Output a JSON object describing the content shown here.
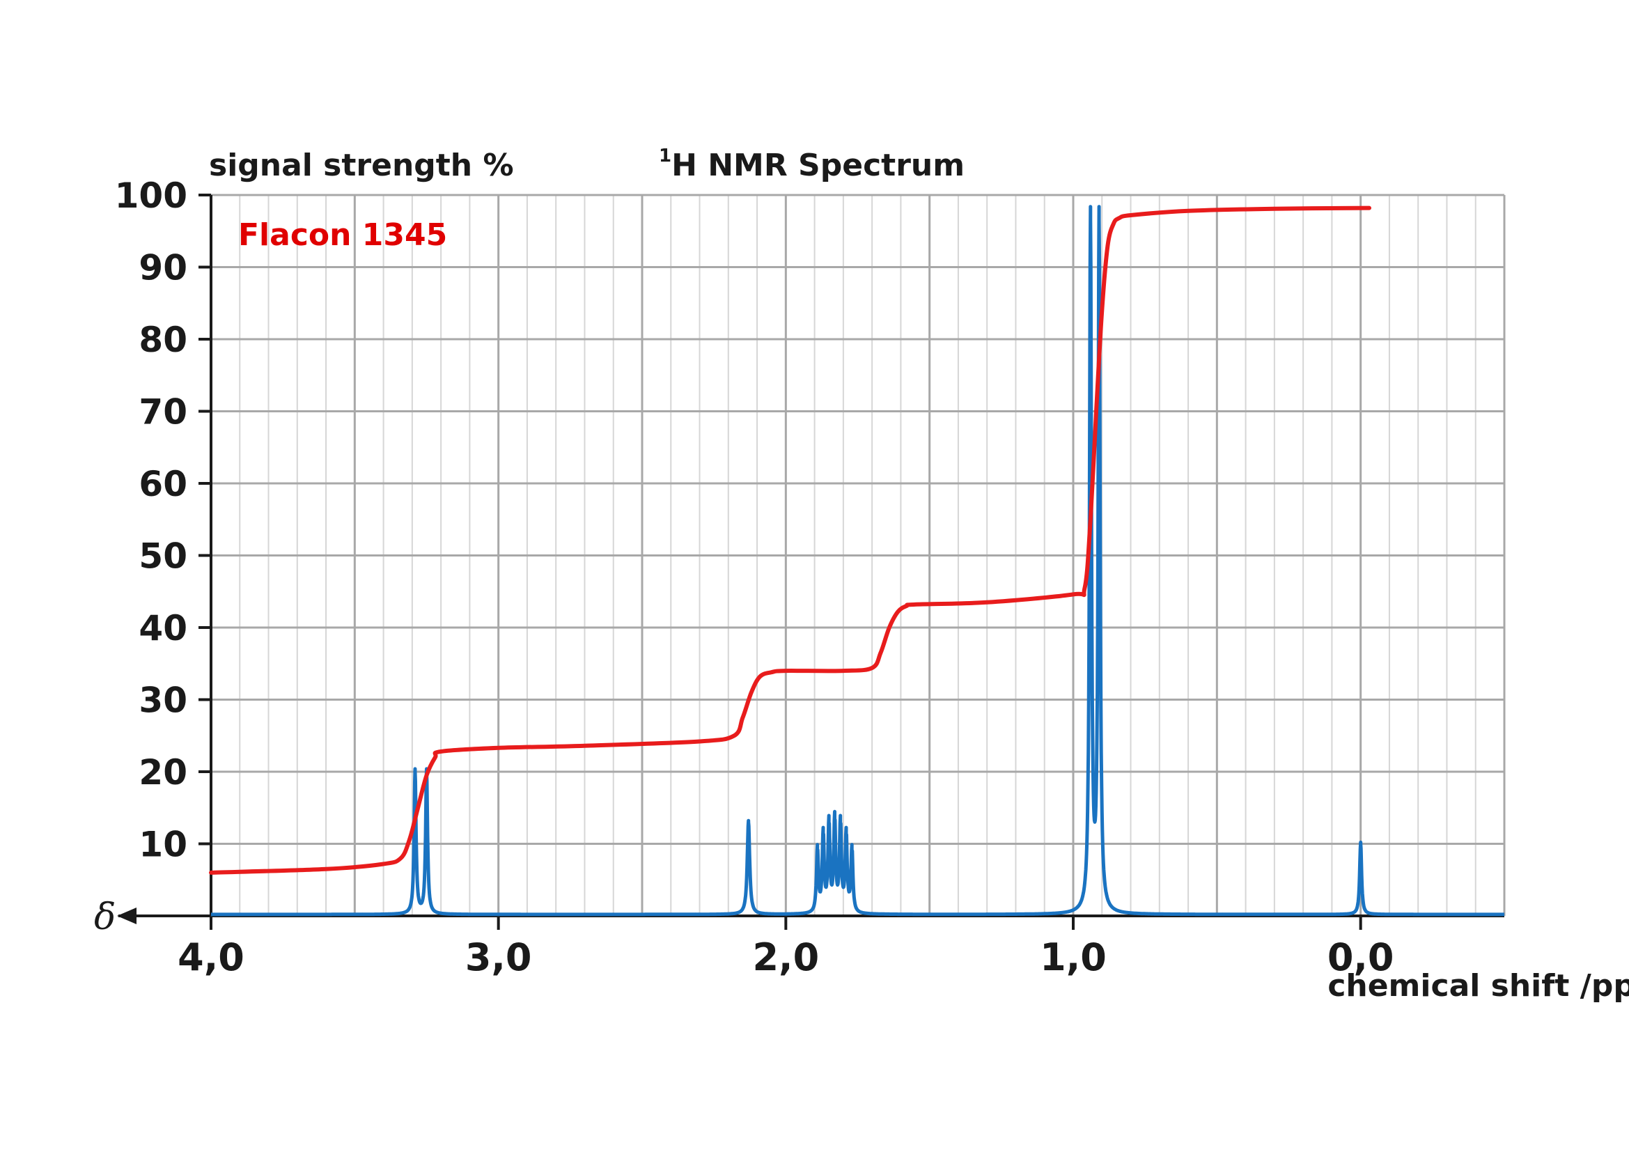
{
  "chart_data": {
    "type": "line",
    "title": "H NMR Spectrum",
    "title_superscript": "1",
    "ylabel": "signal strength %",
    "xlabel": "chemical shift /ppm",
    "axis_symbol": "δ",
    "annotation": "Flacon 1345",
    "xlim": [
      4.0,
      -0.5
    ],
    "ylim": [
      0,
      100
    ],
    "x_ticks": [
      4.0,
      3.0,
      2.0,
      1.0,
      0.0
    ],
    "x_tick_labels": [
      "4,0",
      "3,0",
      "2,0",
      "1,0",
      "0,0"
    ],
    "x_minor_step": 0.1,
    "x_major_step": 0.5,
    "y_ticks": [
      10,
      20,
      30,
      40,
      50,
      60,
      70,
      80,
      90,
      100
    ],
    "y_tick_labels": [
      "10",
      "20",
      "30",
      "40",
      "50",
      "60",
      "70",
      "80",
      "90",
      "100"
    ],
    "grid": true,
    "series": [
      {
        "role": "spectrum",
        "color": "#1a73c1",
        "peaks": [
          {
            "x": 3.29,
            "height": 20,
            "width": 0.004
          },
          {
            "x": 3.25,
            "height": 20,
            "width": 0.004
          },
          {
            "x": 2.13,
            "height": 13,
            "width": 0.005
          },
          {
            "x": 1.89,
            "height": 9,
            "width": 0.004
          },
          {
            "x": 1.87,
            "height": 11,
            "width": 0.004
          },
          {
            "x": 1.85,
            "height": 12.5,
            "width": 0.004
          },
          {
            "x": 1.83,
            "height": 13,
            "width": 0.004
          },
          {
            "x": 1.81,
            "height": 12.5,
            "width": 0.004
          },
          {
            "x": 1.79,
            "height": 11,
            "width": 0.004
          },
          {
            "x": 1.77,
            "height": 9,
            "width": 0.004
          },
          {
            "x": 0.94,
            "height": 96.5,
            "width": 0.004
          },
          {
            "x": 0.91,
            "height": 96.5,
            "width": 0.004
          },
          {
            "x": 0.0,
            "height": 10,
            "width": 0.004
          }
        ]
      },
      {
        "role": "integral",
        "color": "#e81c1c",
        "x": [
          4.0,
          3.6,
          3.4,
          3.34,
          3.31,
          3.28,
          3.25,
          3.22,
          3.2,
          3.0,
          2.7,
          2.3,
          2.18,
          2.15,
          2.12,
          2.09,
          2.05,
          2.0,
          1.8,
          1.7,
          1.67,
          1.64,
          1.61,
          1.58,
          1.55,
          1.3,
          1.0,
          0.96,
          0.94,
          0.92,
          0.9,
          0.88,
          0.86,
          0.84,
          0.8,
          0.6,
          0.3,
          -0.03
        ],
        "y": [
          6.0,
          6.5,
          7.2,
          8.0,
          10.5,
          15.0,
          19.5,
          22.0,
          22.8,
          23.3,
          23.6,
          24.2,
          25.0,
          27.5,
          31.0,
          33.2,
          33.8,
          34.0,
          34.0,
          34.4,
          36.5,
          40.0,
          42.2,
          43.0,
          43.2,
          43.5,
          44.6,
          45.5,
          55.0,
          70.0,
          84.0,
          93.0,
          96.0,
          96.8,
          97.2,
          97.8,
          98.1,
          98.2
        ]
      }
    ]
  }
}
